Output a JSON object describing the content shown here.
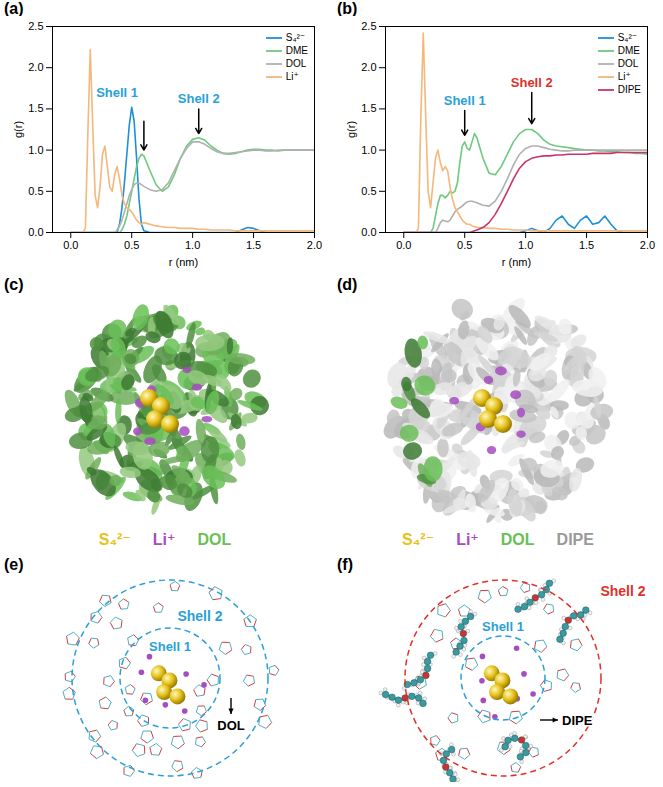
{
  "chart_data": [
    {
      "panel": "(a)",
      "type": "line",
      "x_label": "r (nm)",
      "y_label": "g(r)",
      "xlim": [
        -0.15,
        2.0
      ],
      "xticks": [
        {
          "value": 0,
          "label": "0.0"
        },
        0.5,
        {
          "value": 1,
          "label": "1.0"
        },
        1.5,
        {
          "value": 2,
          "label": "2.0"
        }
      ],
      "ylim": [
        0,
        2.5
      ],
      "yticks": [
        {
          "value": 0,
          "label": "0.0"
        },
        0.5,
        {
          "value": 1,
          "label": "1.0"
        },
        1.5,
        {
          "value": 2,
          "label": "2.0"
        },
        2.5
      ],
      "legend": "top-right",
      "x": [
        0,
        0.02,
        0.04,
        0.06,
        0.08,
        0.1,
        0.12,
        0.14,
        0.16,
        0.18,
        0.2,
        0.22,
        0.24,
        0.26,
        0.28,
        0.3,
        0.32,
        0.34,
        0.36,
        0.38,
        0.4,
        0.42,
        0.44,
        0.46,
        0.48,
        0.5,
        0.52,
        0.54,
        0.56,
        0.58,
        0.6,
        0.65,
        0.7,
        0.75,
        0.8,
        0.85,
        0.9,
        0.95,
        1.0,
        1.05,
        1.1,
        1.15,
        1.2,
        1.25,
        1.3,
        1.35,
        1.4,
        1.45,
        1.5,
        1.55,
        1.6,
        1.65,
        1.7,
        1.75,
        1.8,
        1.85,
        1.9,
        1.95,
        2.0
      ],
      "series": [
        {
          "name": "S₄²⁻",
          "color": "#1f8fd6",
          "values": [
            0,
            0,
            0,
            0,
            0,
            0,
            0,
            0,
            0,
            0,
            0,
            0,
            0,
            0,
            0,
            0,
            0,
            0,
            0,
            0,
            0.1,
            0.3,
            0.6,
            0.95,
            1.3,
            1.52,
            1.35,
            0.9,
            0.4,
            0.1,
            0.02,
            0,
            0,
            0,
            0,
            0,
            0,
            0,
            0,
            0,
            0,
            0,
            0,
            0,
            0,
            0,
            0.03,
            0.06,
            0.05,
            0.02,
            0,
            0,
            0,
            0,
            0,
            0,
            0,
            0,
            0
          ]
        },
        {
          "name": "DME",
          "color": "#6fc97f",
          "values": [
            0,
            0,
            0,
            0,
            0,
            0,
            0,
            0,
            0,
            0,
            0,
            0,
            0,
            0,
            0,
            0,
            0,
            0,
            0,
            0,
            0,
            0.03,
            0.1,
            0.2,
            0.35,
            0.5,
            0.65,
            0.8,
            0.9,
            0.95,
            0.93,
            0.75,
            0.58,
            0.5,
            0.55,
            0.7,
            0.9,
            1.05,
            1.13,
            1.15,
            1.12,
            1.05,
            1.0,
            0.96,
            0.95,
            0.96,
            0.98,
            1.0,
            1.01,
            1.01,
            1.0,
            1.0,
            0.99,
            1.0,
            1.0,
            1.0,
            1.0,
            1.0,
            1.0
          ]
        },
        {
          "name": "DOL",
          "color": "#b0b0b0",
          "values": [
            0,
            0,
            0,
            0,
            0,
            0,
            0,
            0,
            0,
            0,
            0,
            0,
            0,
            0,
            0,
            0,
            0,
            0,
            0,
            0.03,
            0.08,
            0.15,
            0.25,
            0.35,
            0.45,
            0.52,
            0.58,
            0.6,
            0.6,
            0.58,
            0.56,
            0.52,
            0.5,
            0.52,
            0.6,
            0.75,
            0.9,
            1.02,
            1.1,
            1.1,
            1.07,
            1.02,
            0.98,
            0.96,
            0.96,
            0.97,
            0.98,
            0.99,
            1.0,
            1.0,
            0.99,
            0.99,
            1.0,
            1.0,
            1.0,
            1.0,
            1.0,
            1.0,
            1.0
          ]
        },
        {
          "name": "Li⁺",
          "color": "#f5b77a",
          "values": [
            0,
            0,
            0,
            0,
            0,
            0,
            0.05,
            1.2,
            2.22,
            1.3,
            0.45,
            0.3,
            0.55,
            0.95,
            1.05,
            0.8,
            0.55,
            0.5,
            0.7,
            0.8,
            0.65,
            0.45,
            0.35,
            0.3,
            0.28,
            0.25,
            0.2,
            0.15,
            0.12,
            0.1,
            0.12,
            0.1,
            0.08,
            0.07,
            0.06,
            0.06,
            0.05,
            0.05,
            0.05,
            0.04,
            0.04,
            0.03,
            0.03,
            0.03,
            0.03,
            0.02,
            0.02,
            0.02,
            0.02,
            0.02,
            0.02,
            0.02,
            0.02,
            0.02,
            0.02,
            0.02,
            0.02,
            0.02,
            0.02
          ]
        }
      ],
      "annotations": [
        {
          "text": "Shell 1",
          "color": "#2a9fd8",
          "text_x": 0.38,
          "text_y": 1.7,
          "arrow_from": [
            0.6,
            1.35
          ],
          "arrow_to": [
            0.6,
            1.0
          ]
        },
        {
          "text": "Shell 2",
          "color": "#2a9fd8",
          "text_x": 1.05,
          "text_y": 1.62,
          "arrow_from": [
            1.05,
            1.5
          ],
          "arrow_to": [
            1.05,
            1.2
          ]
        }
      ]
    },
    {
      "panel": "(b)",
      "type": "line",
      "x_label": "r (nm)",
      "y_label": "g(r)",
      "xlim": [
        -0.15,
        2.0
      ],
      "xticks": [
        {
          "value": 0,
          "label": "0.0"
        },
        0.5,
        {
          "value": 1,
          "label": "1.0"
        },
        1.5,
        {
          "value": 2,
          "label": "2.0"
        }
      ],
      "ylim": [
        0,
        2.5
      ],
      "yticks": [
        {
          "value": 0,
          "label": "0.0"
        },
        0.5,
        {
          "value": 1,
          "label": "1.0"
        },
        1.5,
        {
          "value": 2,
          "label": "2.0"
        },
        2.5
      ],
      "legend": "top-right",
      "x": [
        0,
        0.02,
        0.04,
        0.06,
        0.08,
        0.1,
        0.12,
        0.14,
        0.16,
        0.18,
        0.2,
        0.22,
        0.24,
        0.26,
        0.28,
        0.3,
        0.32,
        0.34,
        0.36,
        0.38,
        0.4,
        0.42,
        0.44,
        0.46,
        0.48,
        0.5,
        0.52,
        0.54,
        0.56,
        0.58,
        0.6,
        0.65,
        0.7,
        0.75,
        0.8,
        0.85,
        0.9,
        0.95,
        1.0,
        1.05,
        1.1,
        1.15,
        1.2,
        1.25,
        1.3,
        1.35,
        1.4,
        1.45,
        1.5,
        1.55,
        1.6,
        1.65,
        1.7,
        1.75,
        1.8,
        1.85,
        1.9,
        1.95,
        2.0
      ],
      "series": [
        {
          "name": "S₄²⁻",
          "color": "#1f8fd6",
          "values": [
            0,
            0,
            0,
            0,
            0,
            0,
            0,
            0,
            0,
            0,
            0,
            0,
            0,
            0,
            0,
            0,
            0,
            0,
            0,
            0,
            0,
            0,
            0,
            0,
            0,
            0,
            0,
            0,
            0,
            0,
            0,
            0,
            0,
            0,
            0,
            0,
            0,
            0,
            0.02,
            0.05,
            0.02,
            0,
            0.05,
            0.15,
            0.2,
            0.1,
            0.05,
            0.15,
            0.2,
            0.1,
            0.12,
            0.2,
            0.1,
            0.02,
            0,
            0,
            0,
            0,
            0
          ]
        },
        {
          "name": "DME",
          "color": "#6fc97f",
          "values": [
            0,
            0,
            0,
            0,
            0,
            0,
            0,
            0,
            0,
            0,
            0,
            0,
            0.05,
            0.2,
            0.35,
            0.45,
            0.45,
            0.42,
            0.45,
            0.5,
            0.48,
            0.5,
            0.6,
            0.85,
            1.05,
            1.1,
            1.02,
            1.0,
            1.1,
            1.2,
            1.15,
            0.9,
            0.72,
            0.7,
            0.8,
            0.95,
            1.1,
            1.2,
            1.25,
            1.25,
            1.2,
            1.12,
            1.07,
            1.05,
            1.04,
            1.03,
            1.02,
            1.01,
            1.0,
            1.0,
            0.99,
            0.99,
            0.98,
            0.98,
            0.97,
            0.97,
            0.96,
            0.96,
            0.95
          ]
        },
        {
          "name": "DOL",
          "color": "#b0b0b0",
          "values": [
            0,
            0,
            0,
            0,
            0,
            0,
            0,
            0,
            0,
            0,
            0,
            0,
            0,
            0,
            0.05,
            0.12,
            0.15,
            0.14,
            0.13,
            0.15,
            0.2,
            0.25,
            0.28,
            0.3,
            0.32,
            0.35,
            0.37,
            0.38,
            0.38,
            0.37,
            0.36,
            0.33,
            0.32,
            0.38,
            0.5,
            0.65,
            0.82,
            0.95,
            1.02,
            1.05,
            1.05,
            1.03,
            1.01,
            1.0,
            0.99,
            0.99,
            1.0,
            1.0,
            1.0,
            1.0,
            1.0,
            1.0,
            1.0,
            1.0,
            1.0,
            1.0,
            1.0,
            1.0,
            1.0
          ]
        },
        {
          "name": "Li⁺",
          "color": "#f5b77a",
          "values": [
            0,
            0,
            0,
            0,
            0,
            0,
            0.05,
            1.4,
            2.42,
            1.4,
            0.5,
            0.3,
            0.6,
            0.9,
            1.0,
            0.85,
            0.75,
            0.8,
            0.75,
            0.55,
            0.4,
            0.3,
            0.25,
            0.2,
            0.15,
            0.12,
            0.1,
            0.1,
            0.08,
            0.07,
            0.06,
            0.06,
            0.05,
            0.05,
            0.04,
            0.04,
            0.03,
            0.03,
            0.03,
            0.02,
            0.02,
            0.02,
            0.02,
            0.02,
            0.02,
            0.02,
            0.02,
            0.02,
            0.02,
            0.02,
            0.02,
            0.02,
            0.02,
            0.02,
            0.02,
            0.02,
            0.02,
            0.02,
            0.02
          ]
        },
        {
          "name": "DIPE",
          "color": "#c8346c",
          "values": [
            0,
            0,
            0,
            0,
            0,
            0,
            0,
            0,
            0,
            0,
            0,
            0,
            0,
            0,
            0,
            0,
            0,
            0,
            0,
            0,
            0,
            0,
            0,
            0,
            0,
            0,
            0,
            0,
            0.01,
            0.02,
            0.03,
            0.06,
            0.12,
            0.22,
            0.35,
            0.5,
            0.65,
            0.78,
            0.86,
            0.9,
            0.92,
            0.93,
            0.93,
            0.94,
            0.94,
            0.95,
            0.95,
            0.95,
            0.95,
            0.96,
            0.96,
            0.96,
            0.96,
            0.97,
            0.97,
            0.97,
            0.97,
            0.97,
            0.97
          ]
        }
      ],
      "annotations": [
        {
          "text": "Shell 1",
          "color": "#2a9fd8",
          "text_x": 0.5,
          "text_y": 1.6,
          "arrow_from": [
            0.5,
            1.48
          ],
          "arrow_to": [
            0.5,
            1.18
          ]
        },
        {
          "text": "Shell 2",
          "color": "#e0302a",
          "text_x": 1.05,
          "text_y": 1.82,
          "arrow_from": [
            1.05,
            1.7
          ],
          "arrow_to": [
            1.05,
            1.32
          ]
        }
      ]
    }
  ],
  "images": [
    {
      "panel": "(c)",
      "legend": [
        {
          "text": "S₄²⁻",
          "color": "#e6c21a"
        },
        {
          "text": "Li⁺",
          "color": "#a64cc0"
        },
        {
          "text": "DOL",
          "color": "#6abf58"
        }
      ]
    },
    {
      "panel": "(d)",
      "legend": [
        {
          "text": "S₄²⁻",
          "color": "#e6c21a"
        },
        {
          "text": "Li⁺",
          "color": "#a64cc0"
        },
        {
          "text": "DOL",
          "color": "#6abf58"
        },
        {
          "text": "DIPE",
          "color": "#999999"
        }
      ]
    },
    {
      "panel": "(e)",
      "labels": [
        {
          "text": "Shell 1",
          "color": "#2a9fd8"
        },
        {
          "text": "Shell 2",
          "color": "#2a9fd8"
        },
        {
          "text": "DOL",
          "color": "#000000"
        }
      ]
    },
    {
      "panel": "(f)",
      "labels": [
        {
          "text": "Shell 1",
          "color": "#2a9fd8"
        },
        {
          "text": "Shell 2",
          "color": "#e0302a"
        },
        {
          "text": "DIPE",
          "color": "#000000"
        }
      ]
    }
  ]
}
